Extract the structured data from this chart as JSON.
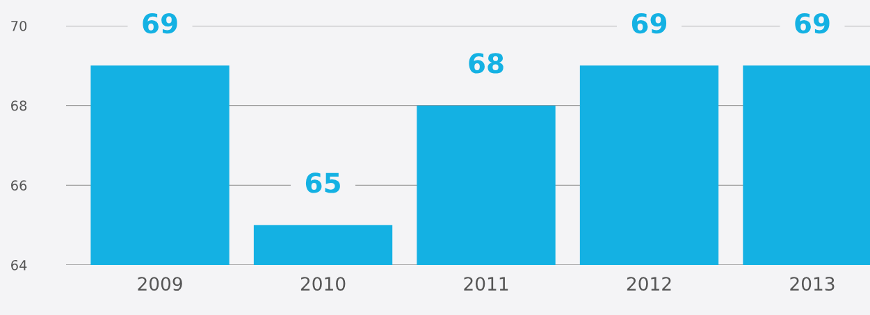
{
  "chart_data": {
    "type": "bar",
    "categories": [
      "2009",
      "2010",
      "2011",
      "2012",
      "2013"
    ],
    "values": [
      69,
      65,
      68,
      69,
      69
    ],
    "color": "#14b1e3",
    "ylim": [
      64,
      70
    ],
    "yticks": [
      64,
      66,
      68,
      70
    ],
    "grid": "y",
    "data_labels": true
  }
}
